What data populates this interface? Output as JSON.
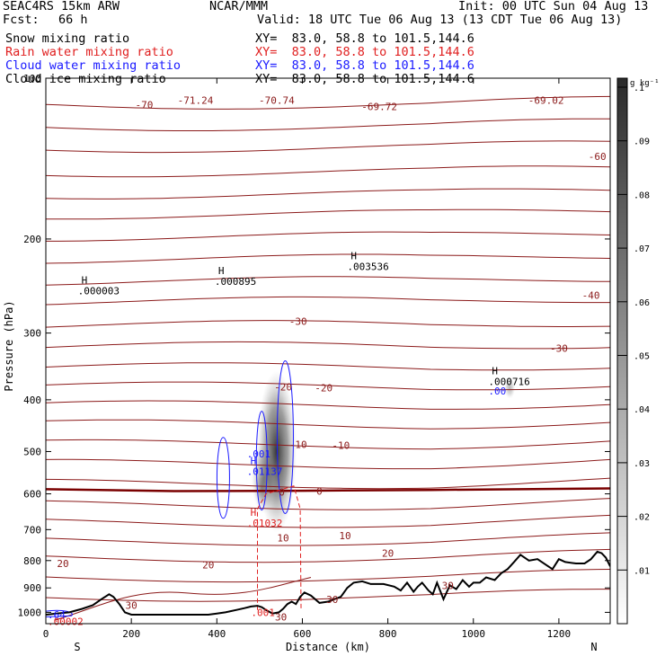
{
  "header": {
    "model": "SEAC4RS 15km ARW",
    "org": "NCAR/MMM",
    "init": "Init: 00 UTC Sun 04 Aug 13",
    "fcst_label": "Fcst:",
    "fcst_value": "66 h",
    "valid": "Valid: 18 UTC Tue 06 Aug 13 (13 CDT Tue 06 Aug 13)",
    "fields": [
      {
        "label": "Snow mixing ratio",
        "color": "#000000",
        "xy": "XY=  83.0, 58.8 to 101.5,144.6"
      },
      {
        "label": "Rain water mixing ratio",
        "color": "#e02020",
        "xy": "XY=  83.0, 58.8 to 101.5,144.6"
      },
      {
        "label": "Cloud water mixing ratio",
        "color": "#1a1aff",
        "xy": "XY=  83.0, 58.8 to 101.5,144.6"
      },
      {
        "label": "Cloud ice mixing ratio",
        "color": "#000000",
        "xy": "XY=  83.0, 58.8 to 101.5,144.6"
      }
    ]
  },
  "chart_data": {
    "type": "heatmap",
    "description_free": true,
    "xlabel": "Distance (km)",
    "ylabel": "Pressure (hPa)",
    "xlim": [
      0,
      1320
    ],
    "ylim": [
      1050,
      100
    ],
    "xticks": [
      0,
      200,
      400,
      600,
      800,
      1000,
      1200
    ],
    "yticks": [
      100,
      200,
      300,
      400,
      500,
      600,
      700,
      800,
      900,
      1000
    ],
    "y_scale": "log",
    "x_end_labels": {
      "left": "S",
      "right": "N"
    },
    "colorbar": {
      "unit": "g kg⁻¹",
      "ticks": [
        0.01,
        0.02,
        0.03,
        0.04,
        0.05,
        0.06,
        0.07,
        0.08,
        0.09,
        0.1
      ],
      "tick_labels": [
        ".01",
        ".02",
        ".03",
        ".04",
        ".05",
        ".06",
        ".07",
        ".08",
        ".09",
        ".1"
      ],
      "max": 0.1
    },
    "temperature_labels": [
      {
        "text": "-70",
        "x": 230,
        "p": 112
      },
      {
        "text": "-71.24",
        "x": 350,
        "p": 110
      },
      {
        "text": "-70.74",
        "x": 540,
        "p": 110
      },
      {
        "text": "-69.72",
        "x": 780,
        "p": 113
      },
      {
        "text": "-69.02",
        "x": 1170,
        "p": 110
      },
      {
        "text": "-60",
        "x": 1290,
        "p": 140
      },
      {
        "text": "-40",
        "x": 1275,
        "p": 255
      },
      {
        "text": "-30",
        "x": 590,
        "p": 285
      },
      {
        "text": "-30",
        "x": 1200,
        "p": 320
      },
      {
        "text": "-20",
        "x": 555,
        "p": 378
      },
      {
        "text": "-20",
        "x": 650,
        "p": 380
      },
      {
        "text": "-10",
        "x": 590,
        "p": 485
      },
      {
        "text": "-10",
        "x": 690,
        "p": 487
      },
      {
        "text": "0",
        "x": 552,
        "p": 595
      },
      {
        "text": "0",
        "x": 640,
        "p": 593
      },
      {
        "text": "10",
        "x": 555,
        "p": 725
      },
      {
        "text": "10",
        "x": 700,
        "p": 718
      },
      {
        "text": "20",
        "x": 800,
        "p": 775
      },
      {
        "text": "20",
        "x": 40,
        "p": 810
      },
      {
        "text": "20",
        "x": 380,
        "p": 815
      },
      {
        "text": "30",
        "x": 200,
        "p": 970
      },
      {
        "text": "30",
        "x": 550,
        "p": 1020
      },
      {
        "text": "30",
        "x": 670,
        "p": 945
      },
      {
        "text": "30",
        "x": 940,
        "p": 890
      }
    ],
    "maxima_labels": [
      {
        "mark": "H",
        "value": ".000003",
        "x": 75,
        "p": 250,
        "color": "#000000"
      },
      {
        "mark": "H",
        "value": ".000895",
        "x": 395,
        "p": 240,
        "color": "#000000"
      },
      {
        "mark": "H",
        "value": ".003536",
        "x": 705,
        "p": 225,
        "color": "#000000"
      },
      {
        "mark": "H",
        "value": ".000716",
        "x": 1035,
        "p": 370,
        "color": "#000000"
      },
      {
        "mark": "",
        "value": ".00",
        "x": 1035,
        "p": 385,
        "color": "#1a1aff"
      },
      {
        "mark": "",
        "value": ".001",
        "x": 470,
        "p": 505,
        "color": "#1a1aff"
      },
      {
        "mark": "H",
        "value": ".01137",
        "x": 470,
        "p": 545,
        "color": "#1a1aff"
      },
      {
        "mark": "H",
        "value": ".01032",
        "x": 470,
        "p": 680,
        "color": "#e02020"
      },
      {
        "mark": "",
        "value": ".001",
        "x": 480,
        "p": 1000,
        "color": "#e02020"
      },
      {
        "mark": "",
        "value": ".64",
        "x": 0,
        "p": 1010,
        "color": "#1a1aff"
      },
      {
        "mark": "",
        "value": ".00002",
        "x": 0,
        "p": 1040,
        "color": "#e02020"
      }
    ],
    "terrain_surface_pressure": {
      "x": [
        0,
        25,
        55,
        85,
        110,
        130,
        148,
        158,
        172,
        185,
        200,
        260,
        320,
        380,
        400,
        420,
        445,
        465,
        480,
        495,
        505,
        515,
        530,
        545,
        555,
        565,
        575,
        585,
        595,
        605,
        620,
        640,
        660,
        690,
        705,
        720,
        740,
        760,
        790,
        815,
        830,
        845,
        860,
        870,
        880,
        895,
        905,
        915,
        930,
        945,
        960,
        975,
        990,
        1000,
        1015,
        1030,
        1050,
        1065,
        1080,
        1095,
        1110,
        1130,
        1150,
        1170,
        1185,
        1200,
        1215,
        1240,
        1260,
        1275,
        1290,
        1300,
        1310,
        1320
      ],
      "p": [
        1010,
        1005,
        1000,
        985,
        970,
        945,
        925,
        935,
        965,
        1000,
        1010,
        1010,
        1010,
        1010,
        1005,
        1000,
        990,
        982,
        975,
        972,
        978,
        990,
        1005,
        1000,
        985,
        965,
        955,
        965,
        935,
        918,
        930,
        960,
        955,
        935,
        900,
        880,
        875,
        885,
        885,
        895,
        910,
        880,
        915,
        895,
        880,
        910,
        925,
        880,
        945,
        890,
        905,
        870,
        895,
        880,
        880,
        860,
        870,
        845,
        830,
        805,
        780,
        800,
        795,
        815,
        830,
        795,
        805,
        810,
        810,
        795,
        770,
        775,
        790,
        820
      ]
    }
  },
  "colors": {
    "isotherm": "#8b1a1a",
    "freezing_level": "#7a0000",
    "rain": "#e02020",
    "cloud_water": "#1a1aff",
    "terrain": "#000000",
    "shading": "#333333"
  }
}
